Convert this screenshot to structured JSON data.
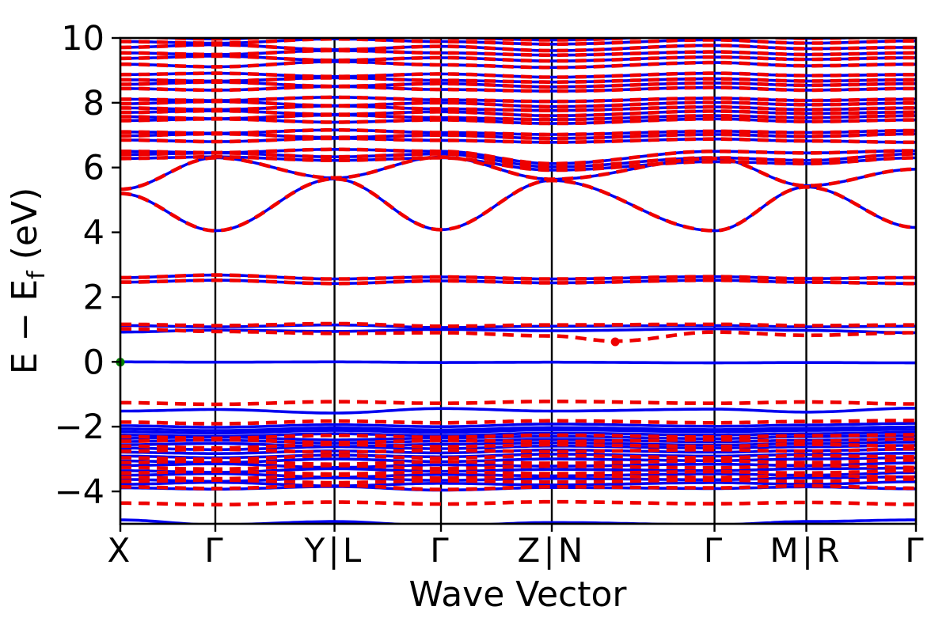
{
  "figure": {
    "background": "#ffffff"
  },
  "chart_data": {
    "type": "line",
    "title": "",
    "xlabel": "Wave Vector",
    "ylabel": "E − E_f (eV)",
    "ylabel_parts": {
      "pre": "E  −  E",
      "sub": "f",
      "post": " (eV)"
    },
    "ylim": [
      -5,
      10
    ],
    "yticks": [
      -4,
      -2,
      0,
      2,
      4,
      6,
      8,
      10
    ],
    "grid": "vertical separators at high-symmetry k-points, full frame box, no horizontal grid",
    "legend": "none",
    "x_axis": {
      "labels": [
        "X",
        "Γ",
        "Y|L",
        "Γ",
        "Z|N",
        "Γ",
        "M|R",
        "Γ"
      ],
      "positions": [
        0,
        0.1194,
        0.2692,
        0.403,
        0.5423,
        0.7468,
        0.8622,
        1.0
      ]
    },
    "colors": {
      "band_blue": "#0000f0",
      "band_red": "#ee0000",
      "axis": "#000000",
      "vbm_green": "#008000"
    },
    "series_notes": "shared_bands are drawn in both series (blue solid under red dashed); each series also draws its own bands",
    "shared_bands": [
      [
        2.46,
        2.52,
        2.42,
        2.5,
        2.44,
        2.52,
        2.46,
        2.42
      ],
      [
        2.6,
        2.68,
        2.56,
        2.62,
        2.56,
        2.63,
        2.57,
        2.6
      ],
      [
        5.2,
        4.05,
        5.65,
        4.08,
        5.6,
        4.05,
        5.4,
        4.15
      ],
      [
        5.33,
        6.3,
        5.68,
        6.32,
        5.64,
        6.28,
        5.44,
        5.95
      ],
      [
        6.28,
        6.33,
        6.22,
        6.3,
        5.92,
        6.18,
        6.12,
        6.3
      ],
      [
        6.4,
        6.45,
        6.33,
        6.42,
        6.02,
        6.3,
        6.22,
        6.42
      ],
      [
        6.5,
        6.46,
        6.56,
        6.5,
        6.12,
        6.5,
        6.45,
        6.52
      ],
      [
        6.85,
        6.8,
        6.9,
        6.84,
        6.78,
        6.88,
        6.82,
        6.78
      ],
      [
        6.98,
        7.04,
        6.93,
        7.0,
        6.9,
        7.02,
        6.96,
        7.04
      ],
      [
        7.1,
        7.06,
        7.16,
        7.08,
        7.02,
        7.12,
        7.08,
        7.14
      ],
      [
        7.45,
        7.5,
        7.4,
        7.47,
        7.36,
        7.5,
        7.42,
        7.47
      ],
      [
        7.57,
        7.51,
        7.62,
        7.54,
        7.48,
        7.6,
        7.54,
        7.6
      ],
      [
        7.7,
        7.75,
        7.64,
        7.72,
        7.6,
        7.74,
        7.67,
        7.71
      ],
      [
        7.84,
        7.79,
        7.9,
        7.81,
        7.76,
        7.87,
        7.79,
        7.84
      ],
      [
        7.97,
        8.04,
        7.91,
        8.0,
        7.88,
        8.01,
        7.94,
        7.99
      ],
      [
        8.11,
        8.07,
        8.17,
        8.09,
        8.04,
        8.14,
        8.07,
        8.11
      ],
      [
        8.44,
        8.39,
        8.5,
        8.41,
        8.36,
        8.47,
        8.39,
        8.44
      ],
      [
        8.57,
        8.64,
        8.51,
        8.59,
        8.49,
        8.61,
        8.54,
        8.59
      ],
      [
        8.71,
        8.67,
        8.77,
        8.69,
        8.64,
        8.74,
        8.67,
        8.71
      ],
      [
        8.87,
        8.91,
        8.81,
        8.89,
        8.79,
        8.91,
        8.84,
        8.87
      ],
      [
        9.19,
        9.11,
        9.27,
        9.17,
        9.09,
        9.24,
        9.14,
        9.19
      ],
      [
        9.37,
        9.44,
        9.31,
        9.39,
        9.29,
        9.41,
        9.34,
        9.39
      ],
      [
        9.54,
        9.49,
        9.61,
        9.54,
        9.47,
        9.57,
        9.49,
        9.54
      ],
      [
        9.71,
        9.79,
        9.64,
        9.74,
        9.61,
        9.77,
        9.67,
        9.71
      ],
      [
        9.89,
        9.84,
        9.97,
        9.89,
        9.81,
        9.94,
        9.84,
        9.91
      ],
      [
        10.04,
        9.97,
        10.1,
        10.01,
        9.94,
        10.07,
        9.99,
        10.04
      ]
    ],
    "series": [
      {
        "name": "spin-up (solid blue)",
        "color": "#0000f0",
        "line_style": "solid",
        "line_width": 3.6,
        "bands": [
          [
            0.0,
            -0.01,
            0.0,
            -0.02,
            -0.01,
            -0.03,
            -0.02,
            -0.03
          ],
          [
            1.12,
            1.08,
            1.14,
            1.06,
            1.1,
            1.12,
            1.08,
            1.1
          ],
          [
            0.92,
            0.98,
            0.94,
            1.0,
            0.96,
            1.02,
            0.97,
            0.9
          ],
          [
            -1.52,
            -1.47,
            -1.58,
            -1.44,
            -1.52,
            -1.46,
            -1.55,
            -1.43
          ],
          [
            -1.97,
            -2.02,
            -1.94,
            -2.0,
            -1.92,
            -1.99,
            -1.95,
            -1.9
          ],
          [
            -2.07,
            -2.12,
            -2.04,
            -2.1,
            -2.03,
            -2.09,
            -2.05,
            -2.01
          ],
          [
            -2.16,
            -2.2,
            -2.12,
            -2.18,
            -2.1,
            -2.16,
            -2.12,
            -2.09
          ],
          [
            -2.26,
            -2.3,
            -2.22,
            -2.28,
            -2.2,
            -2.26,
            -2.22,
            -2.18
          ],
          [
            -2.36,
            -2.32,
            -2.41,
            -2.35,
            -2.3,
            -2.37,
            -2.31,
            -2.28
          ],
          [
            -2.46,
            -2.42,
            -2.51,
            -2.45,
            -2.4,
            -2.47,
            -2.42,
            -2.38
          ],
          [
            -2.56,
            -2.52,
            -2.61,
            -2.55,
            -2.5,
            -2.57,
            -2.52,
            -2.48
          ],
          [
            -2.66,
            -2.71,
            -2.62,
            -2.68,
            -2.6,
            -2.66,
            -2.62,
            -2.58
          ],
          [
            -2.79,
            -2.83,
            -2.75,
            -2.81,
            -2.72,
            -2.79,
            -2.74,
            -2.7
          ],
          [
            -2.91,
            -2.96,
            -2.88,
            -2.93,
            -2.85,
            -2.91,
            -2.86,
            -2.82
          ],
          [
            -3.06,
            -3.11,
            -3.0,
            -3.08,
            -3.0,
            -3.05,
            -3.0,
            -2.96
          ],
          [
            -3.2,
            -3.15,
            -3.26,
            -3.18,
            -3.22,
            -3.16,
            -3.2,
            -3.12
          ],
          [
            -3.36,
            -3.41,
            -3.3,
            -3.38,
            -3.32,
            -3.36,
            -3.3,
            -3.28
          ],
          [
            -3.5,
            -3.45,
            -3.56,
            -3.48,
            -3.52,
            -3.46,
            -3.5,
            -3.42
          ],
          [
            -3.63,
            -3.69,
            -3.58,
            -3.66,
            -3.6,
            -3.64,
            -3.58,
            -3.55
          ],
          [
            -3.78,
            -3.72,
            -3.83,
            -3.75,
            -3.8,
            -3.73,
            -3.78,
            -3.7
          ],
          [
            -3.89,
            -3.93,
            -3.85,
            -3.96,
            -3.88,
            -3.91,
            -3.86,
            -3.92
          ],
          [
            -4.88,
            -5.03,
            -4.93,
            -5.06,
            -4.96,
            -5.03,
            -4.93,
            -4.88
          ]
        ]
      },
      {
        "name": "spin-down (dashed red)",
        "color": "#ee0000",
        "line_style": "dashed",
        "line_width": 4.6,
        "dash_pattern": [
          14,
          9
        ],
        "bands": [
          [
            1.16,
            1.12,
            1.18,
            1.1,
            1.14,
            1.16,
            1.12,
            1.14
          ],
          {
            "pts": [
              [
                0,
                1.02
              ],
              [
                0.1194,
                0.94
              ],
              [
                0.2692,
                0.88
              ],
              [
                0.403,
                0.9
              ],
              [
                0.5423,
                0.8
              ],
              [
                0.622,
                0.64
              ],
              [
                0.7468,
                0.92
              ],
              [
                0.8622,
                0.82
              ],
              [
                1,
                0.9
              ]
            ]
          },
          [
            -1.26,
            -1.31,
            -1.23,
            -1.28,
            -1.22,
            -1.28,
            -1.24,
            -1.3
          ],
          [
            -1.86,
            -1.91,
            -1.83,
            -1.88,
            -1.82,
            -1.88,
            -1.84,
            -1.81
          ],
          [
            -2.31,
            -2.36,
            -2.27,
            -2.33,
            -2.26,
            -2.32,
            -2.28,
            -2.25
          ],
          [
            -2.45,
            -2.4,
            -2.49,
            -2.43,
            -2.46,
            -2.41,
            -2.45,
            -2.38
          ],
          [
            -2.6,
            -2.66,
            -2.55,
            -2.62,
            -2.56,
            -2.61,
            -2.55,
            -2.6
          ],
          [
            -2.76,
            -2.7,
            -2.79,
            -2.73,
            -2.77,
            -2.71,
            -2.76,
            -2.68
          ],
          [
            -2.96,
            -3.01,
            -2.9,
            -2.97,
            -2.9,
            -2.96,
            -2.9,
            -2.93
          ],
          [
            -3.11,
            -3.06,
            -3.16,
            -3.08,
            -3.13,
            -3.06,
            -3.11,
            -3.03
          ],
          [
            -3.26,
            -3.31,
            -3.2,
            -3.29,
            -3.22,
            -3.27,
            -3.2,
            -3.26
          ],
          [
            -3.43,
            -3.38,
            -3.46,
            -3.4,
            -3.45,
            -3.39,
            -3.43,
            -3.36
          ],
          [
            -3.56,
            -3.61,
            -3.5,
            -3.59,
            -3.52,
            -3.57,
            -3.5,
            -3.56
          ],
          [
            -3.69,
            -3.65,
            -3.73,
            -3.67,
            -3.71,
            -3.65,
            -3.69,
            -3.62
          ],
          [
            -3.86,
            -3.91,
            -3.81,
            -3.94,
            -3.86,
            -3.89,
            -3.83,
            -3.9
          ],
          [
            -4.36,
            -4.41,
            -4.33,
            -4.39,
            -4.32,
            -4.38,
            -4.34,
            -4.4
          ]
        ]
      }
    ],
    "markers": [
      {
        "name": "vbm-marker",
        "color": "#008000",
        "t": 0.0,
        "energy": -0.01,
        "radius": 5.5
      },
      {
        "name": "cbm-marker",
        "color": "#ee0000",
        "t": 0.622,
        "energy": 0.62,
        "radius": 5.5
      }
    ]
  }
}
